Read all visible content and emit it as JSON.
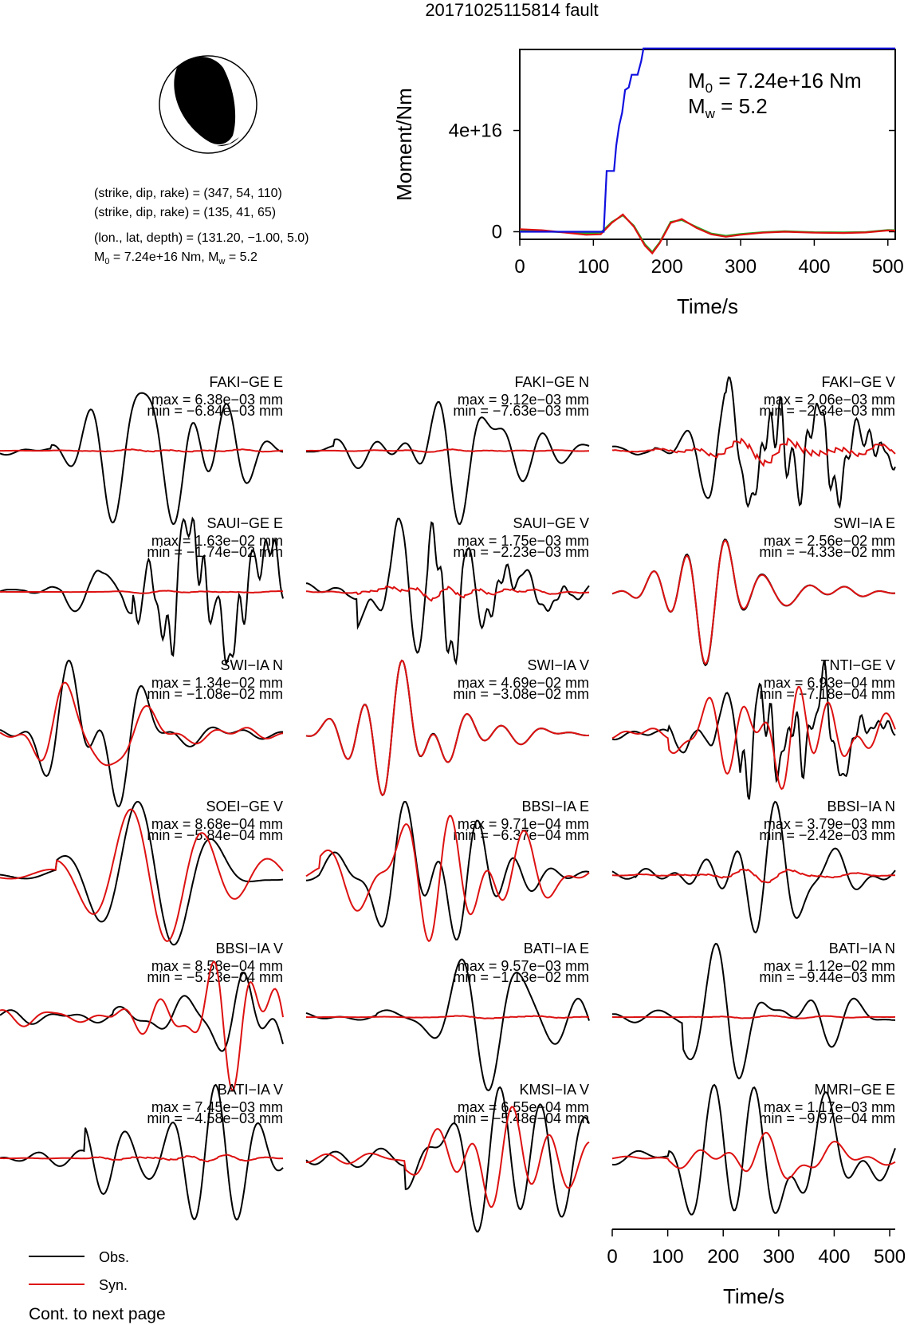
{
  "title": "20171025115814 fault",
  "mechanism": {
    "plane1": "(strike, dip, rake) = (347, 54, 110)",
    "plane2": "(strike, dip, rake) = (135, 41, 65)",
    "location": "(lon., lat, depth) = (131.20, −1.00, 5.0)",
    "moment_line": "M0 = 7.24e+16 Nm, Mw = 5.2",
    "m0_text": "M",
    "m0_sub": "0",
    "m0_rest": " = 7.24e+16 Nm, M",
    "mw_sub": "w",
    "mw_rest": " = 5.2",
    "colors": {
      "beachball_fill": "#000000",
      "beachball_edge": "#000000"
    }
  },
  "chart_data": [
    {
      "type": "line",
      "id": "moment-rate",
      "title": "",
      "xlabel": "Time/s",
      "ylabel": "Moment/Nm",
      "xlim": [
        0,
        510
      ],
      "ylim": [
        -3000000000000000.0,
        7.2e+16
      ],
      "xticks": [
        0,
        100,
        200,
        300,
        400,
        500
      ],
      "xtick_labels": [
        "0",
        "100",
        "200",
        "300",
        "400",
        "500"
      ],
      "yticks": [
        0,
        4e+16
      ],
      "ytick_labels": [
        "0",
        "4e+16"
      ],
      "annotation_m0": {
        "base": "M",
        "sub": "0",
        "rest": " = 7.24e+16 Nm"
      },
      "annotation_mw": {
        "base": "M",
        "sub": "w",
        "rest": " = 5.2"
      },
      "series": [
        {
          "color": "#1010e0",
          "x": [
            0,
            114,
            118,
            128,
            131,
            135,
            139,
            143,
            148,
            152,
            160,
            165,
            168,
            510
          ],
          "y": [
            0,
            0,
            2.4e+16,
            2.4e+16,
            3.4e+16,
            4.2e+16,
            4.7e+16,
            5.6e+16,
            5.7e+16,
            6.2e+16,
            6.2e+16,
            6.75e+16,
            7.24e+16,
            7.24e+16
          ]
        },
        {
          "color": "#dd1111",
          "x": [
            0,
            30,
            60,
            90,
            110,
            125,
            140,
            155,
            170,
            180,
            190,
            205,
            220,
            240,
            260,
            280,
            300,
            330,
            360,
            400,
            440,
            470,
            500,
            510
          ],
          "y": [
            1000000000000000.0,
            600000000000000.0,
            -300000000000000.0,
            -1200000000000000.0,
            -1000000000000000.0,
            3500000000000000.0,
            6800000000000000.0,
            2000000000000000.0,
            -5500000000000000.0,
            -8500000000000000.0,
            -4500000000000000.0,
            3500000000000000.0,
            5000000000000000.0,
            1500000000000000.0,
            -1000000000000000.0,
            -2000000000000000.0,
            -1200000000000000.0,
            -400000000000000.0,
            0,
            -400000000000000.0,
            -500000000000000.0,
            -300000000000000.0,
            500000000000000.0,
            400000000000000.0
          ]
        },
        {
          "color": "#22aa22",
          "x": [
            0,
            30,
            60,
            90,
            110,
            125,
            140,
            155,
            170,
            180,
            190,
            205,
            220,
            240,
            260,
            280,
            300,
            330,
            360,
            400,
            440,
            470,
            500,
            510
          ],
          "y": [
            400000000000000.0,
            200000000000000.0,
            -200000000000000.0,
            -600000000000000.0,
            -400000000000000.0,
            3800000000000000.0,
            6500000000000000.0,
            2400000000000000.0,
            -5000000000000000.0,
            -8000000000000000.0,
            -4200000000000000.0,
            3900000000000000.0,
            4600000000000000.0,
            1900000000000000.0,
            -700000000000000.0,
            -1600000000000000.0,
            -900000000000000.0,
            -200000000000000.0,
            200000000000000.0,
            -200000000000000.0,
            -300000000000000.0,
            -100000000000000.0,
            700000000000000.0,
            600000000000000.0
          ]
        }
      ]
    },
    {
      "type": "line",
      "id": "waveforms",
      "xlabel": "Time/s",
      "xlim": [
        0,
        510
      ],
      "xticks": [
        0,
        100,
        200,
        300,
        400,
        500
      ],
      "xtick_labels": [
        "0",
        "100",
        "200",
        "300",
        "400",
        "500"
      ],
      "legend": {
        "placement": "bottom-left",
        "obs_label": "Obs.",
        "syn_label": "Syn.",
        "obs_color": "#000000",
        "syn_color": "#dd1111"
      },
      "footer": "Cont. to next page",
      "panels": [
        {
          "station": "FAKI−GE E",
          "max": "max = 6.38e−03 mm",
          "min": "min = −6.84e−03 mm",
          "obs_peak": 1.0,
          "syn_peak": 0.02,
          "fit": 0.0,
          "seed": 1,
          "onset": 0.18,
          "obs_style": "smooth"
        },
        {
          "station": "FAKI−GE N",
          "max": "max = 9.12e−03 mm",
          "min": "min = −7.63e−03 mm",
          "obs_peak": 1.0,
          "syn_peak": 0.02,
          "fit": 0.0,
          "seed": 2,
          "onset": 0.1,
          "obs_style": "smooth"
        },
        {
          "station": "FAKI−GE V",
          "max": "max = 2.06e−03 mm",
          "min": "min = −2.34e−03 mm",
          "obs_peak": 1.0,
          "syn_peak": 0.2,
          "fit": 0.3,
          "seed": 3,
          "onset": 0.15,
          "obs_style": "noisy"
        },
        {
          "station": "SAUI−GE E",
          "max": "max = 1.63e−02 mm",
          "min": "min = −1.74e−02 mm",
          "obs_peak": 1.0,
          "syn_peak": 0.02,
          "fit": 0.0,
          "seed": 4,
          "onset": 0.22,
          "obs_style": "noisy"
        },
        {
          "station": "SAUI−GE V",
          "max": "max = 1.75e−03 mm",
          "min": "min = −2.23e−03 mm",
          "obs_peak": 1.0,
          "syn_peak": 0.12,
          "fit": 0.1,
          "seed": 5,
          "onset": 0.18,
          "obs_style": "noisy"
        },
        {
          "station": "SWI−IA E",
          "max": "max = 2.56e−02 mm",
          "min": "min = −4.33e−02 mm",
          "obs_peak": 1.0,
          "syn_peak": 0.98,
          "fit": 0.97,
          "seed": 6,
          "onset": 0.0,
          "obs_style": "long"
        },
        {
          "station": "SWI−IA N",
          "max": "max = 1.34e−02 mm",
          "min": "min = −1.08e−02 mm",
          "obs_peak": 1.0,
          "syn_peak": 0.7,
          "fit": 0.55,
          "seed": 7,
          "onset": 0.0,
          "obs_style": "long"
        },
        {
          "station": "SWI−IA V",
          "max": "max = 4.69e−02 mm",
          "min": "min = −3.08e−02 mm",
          "obs_peak": 1.0,
          "syn_peak": 1.0,
          "fit": 0.99,
          "seed": 8,
          "onset": 0.0,
          "obs_style": "long"
        },
        {
          "station": "TNTI−GE V",
          "max": "max = 6.93e−04 mm",
          "min": "min = −7.18e−04 mm",
          "obs_peak": 1.0,
          "syn_peak": 0.75,
          "fit": 0.2,
          "seed": 9,
          "onset": 0.2,
          "obs_style": "noisy"
        },
        {
          "station": "SOEI−GE V",
          "max": "max = 8.68e−04 mm",
          "min": "min = −5.84e−04 mm",
          "obs_peak": 1.0,
          "syn_peak": 0.9,
          "fit": 0.1,
          "seed": 10,
          "onset": 0.2,
          "obs_style": "smooth"
        },
        {
          "station": "BBSI−IA E",
          "max": "max = 9.71e−04 mm",
          "min": "min = −6.37e−04 mm",
          "obs_peak": 1.0,
          "syn_peak": 0.9,
          "fit": 0.2,
          "seed": 11,
          "onset": 0.05,
          "obs_style": "smooth"
        },
        {
          "station": "BBSI−IA N",
          "max": "max = 3.79e−03 mm",
          "min": "min = −2.42e−03 mm",
          "obs_peak": 1.0,
          "syn_peak": 0.1,
          "fit": 0.0,
          "seed": 12,
          "onset": 0.08,
          "obs_style": "smooth"
        },
        {
          "station": "BBSI−IA V",
          "max": "max = 8.58e−04 mm",
          "min": "min = −5.23e−04 mm",
          "obs_peak": 0.6,
          "syn_peak": 1.0,
          "fit": 0.1,
          "seed": 13,
          "onset": 0.4,
          "obs_style": "smooth"
        },
        {
          "station": "BATI−IA E",
          "max": "max = 9.57e−03 mm",
          "min": "min = −1.13e−02 mm",
          "obs_peak": 1.0,
          "syn_peak": 0.02,
          "fit": 0.0,
          "seed": 14,
          "onset": 0.25,
          "obs_style": "smooth"
        },
        {
          "station": "BATI−IA N",
          "max": "max = 1.12e−02 mm",
          "min": "min = −9.44e−03 mm",
          "obs_peak": 1.0,
          "syn_peak": 0.02,
          "fit": 0.0,
          "seed": 15,
          "onset": 0.25,
          "obs_style": "smooth"
        },
        {
          "station": "BATI−IA V",
          "max": "max = 7.45e−03 mm",
          "min": "min = −4.58e−03 mm",
          "obs_peak": 1.0,
          "syn_peak": 0.05,
          "fit": 0.0,
          "seed": 16,
          "onset": 0.3,
          "obs_style": "smooth"
        },
        {
          "station": "KMSI−IA V",
          "max": "max = 6.55e−04 mm",
          "min": "min = −5.48e−04 mm",
          "obs_peak": 1.0,
          "syn_peak": 0.7,
          "fit": 0.2,
          "seed": 17,
          "onset": 0.35,
          "obs_style": "smooth"
        },
        {
          "station": "MMRI−GE E",
          "max": "max = 1.17e−03 mm",
          "min": "min = −9.97e−04 mm",
          "obs_peak": 1.0,
          "syn_peak": 0.35,
          "fit": 0.0,
          "seed": 18,
          "onset": 0.2,
          "obs_style": "smooth"
        }
      ]
    }
  ]
}
